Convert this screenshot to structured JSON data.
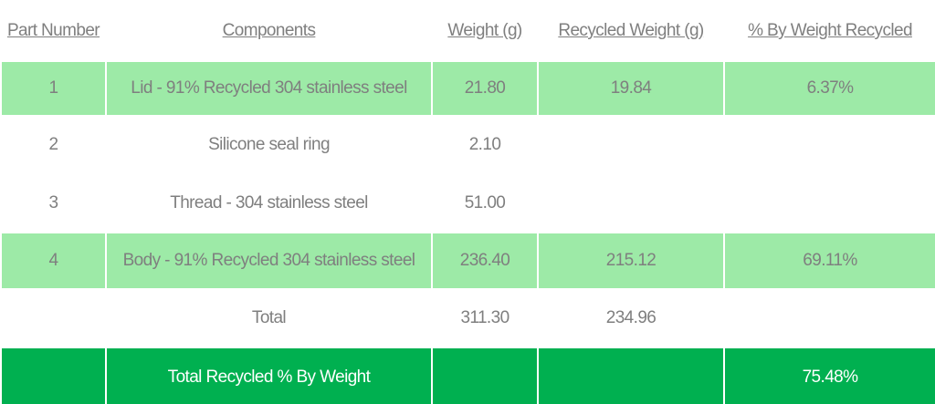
{
  "table": {
    "header": [
      "Part Number",
      "Components",
      "Weight (g)",
      "Recycled Weight (g)",
      "% By Weight Recycled"
    ],
    "rows": [
      {
        "part": "1",
        "component": "Lid - 91% Recycled 304 stainless steel",
        "weight": "21.80",
        "recycled": "19.84",
        "pct": "6.37%",
        "style": "light"
      },
      {
        "part": "2",
        "component": "Silicone seal ring",
        "weight": "2.10",
        "style": "plain"
      },
      {
        "part": "3",
        "component": "Thread - 304 stainless steel",
        "weight": "51.00",
        "style": "plain"
      },
      {
        "part": "4",
        "component": "Body - 91% Recycled 304 stainless steel",
        "weight": "236.40",
        "recycled": "215.12",
        "pct": "69.11%",
        "style": "light"
      },
      {
        "component": "Total",
        "weight": "311.30",
        "recycled": "234.96",
        "style": "plain"
      },
      {
        "component": "Total Recycled % By Weight",
        "pct": "75.48%",
        "style": "dark"
      }
    ]
  }
}
